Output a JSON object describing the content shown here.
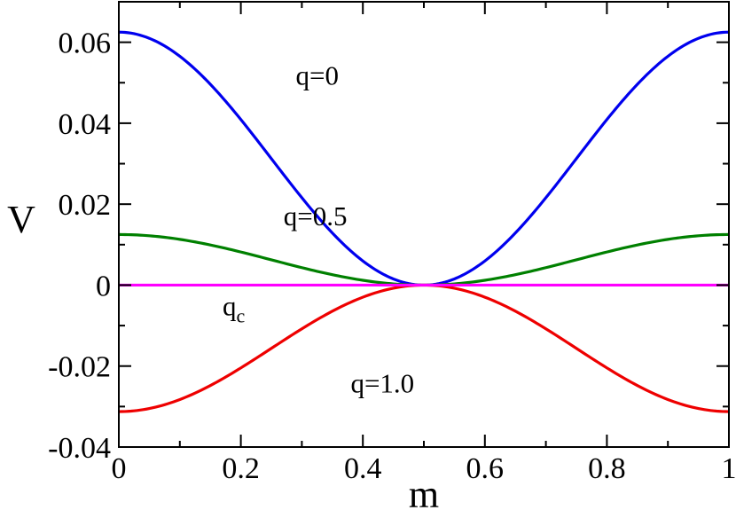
{
  "chart_data": {
    "type": "line",
    "xlabel": "m",
    "ylabel": "V",
    "xlim": [
      0,
      1
    ],
    "ylim": [
      -0.04,
      0.07
    ],
    "x_ticks": [
      0,
      0.2,
      0.4,
      0.6,
      0.8,
      1
    ],
    "x_tick_labels": [
      "0",
      "0.2",
      "0.4",
      "0.6",
      "0.8",
      "1"
    ],
    "y_ticks": [
      -0.04,
      -0.02,
      0,
      0.02,
      0.04,
      0.06
    ],
    "y_tick_labels": [
      "-0.04",
      "-0.02",
      "0",
      "0.02",
      "0.04",
      "0.06"
    ],
    "grid": false,
    "legend": "none",
    "series": [
      {
        "label": "q=0",
        "color": "#0000ee",
        "amplitude": 0.0625,
        "peak_at_edges": true
      },
      {
        "label": "q=0.5",
        "color": "#008000",
        "amplitude": 0.0125,
        "peak_at_edges": true
      },
      {
        "label": "q_c",
        "color": "#ff00ff",
        "amplitude": 0.0,
        "peak_at_edges": true
      },
      {
        "label": "q=1.0",
        "color": "#ee0000",
        "amplitude": -0.03125,
        "peak_at_edges": true
      }
    ],
    "sample_points": {
      "x": [
        0,
        0.1,
        0.2,
        0.3,
        0.4,
        0.5,
        0.6,
        0.7,
        0.8,
        0.9,
        1
      ],
      "q=0": [
        0.0625,
        0.0566,
        0.0409,
        0.0216,
        0.006,
        0,
        0.006,
        0.0216,
        0.0409,
        0.0566,
        0.0625
      ],
      "q=0.5": [
        0.0125,
        0.0113,
        0.0082,
        0.0043,
        0.0012,
        0,
        0.0012,
        0.0043,
        0.0082,
        0.0113,
        0.0125
      ],
      "q_c": [
        0,
        0,
        0,
        0,
        0,
        0,
        0,
        0,
        0,
        0,
        0
      ],
      "q=1.0": [
        -0.0313,
        -0.0283,
        -0.0205,
        -0.0108,
        -0.003,
        0,
        -0.003,
        -0.0108,
        -0.0205,
        -0.0283,
        -0.0313
      ]
    },
    "annotations": [
      {
        "text": "q=0",
        "x": 0.29,
        "y": 0.0495
      },
      {
        "text": "q=0.5",
        "x": 0.27,
        "y": 0.0148
      },
      {
        "text": "q",
        "sub": "c",
        "x": 0.17,
        "y": -0.0075
      },
      {
        "text": "q=1.0",
        "x": 0.38,
        "y": -0.0265
      }
    ]
  }
}
